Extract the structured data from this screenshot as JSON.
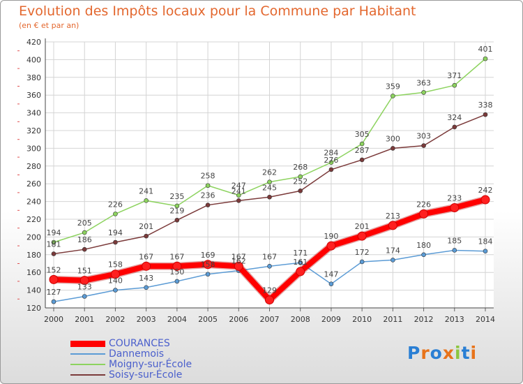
{
  "header": {
    "title": "Evolution des Impôts locaux pour la Commune par Habitant",
    "subtitle": "(en € et par an)"
  },
  "logo": {
    "text": "Proxiti",
    "letters": [
      "P",
      "r",
      "o",
      "x",
      "i",
      "t",
      "i"
    ],
    "colors": [
      "#2a7fd4",
      "#e8731a",
      "#2a7fd4",
      "#e8731a",
      "#8cc63f",
      "#2a7fd4",
      "#e8731a"
    ]
  },
  "chart_data": {
    "type": "line",
    "title": "Evolution des Impôts locaux pour la Commune par Habitant",
    "subtitle": "(en € et par an)",
    "xlabel": "",
    "ylabel": "",
    "x": [
      "2000",
      "2001",
      "2002",
      "2003",
      "2004",
      "2005",
      "2006",
      "2007",
      "2008",
      "2009",
      "2010",
      "2011",
      "2012",
      "2013",
      "2014"
    ],
    "ylim": [
      120,
      420
    ],
    "yticks": [
      "120",
      "140",
      "160",
      "180",
      "200",
      "220",
      "240",
      "260",
      "280",
      "300",
      "320",
      "340",
      "360",
      "380",
      "400",
      "420"
    ],
    "grid": true,
    "legend_position": "bottom-left",
    "series": [
      {
        "name": "COURANCES",
        "color": "#ff0000",
        "bold": true,
        "values": [
          152,
          151,
          158,
          167,
          167,
          169,
          167,
          129,
          161,
          190,
          201,
          213,
          226,
          233,
          242
        ],
        "labels": [
          "152",
          "151",
          "158",
          "167",
          "167",
          "169",
          "167",
          "129",
          "161",
          "190",
          "201",
          "213",
          "226",
          "233",
          "242"
        ]
      },
      {
        "name": "Dannemois",
        "color": "#5b9bd5",
        "bold": false,
        "values": [
          127,
          133,
          140,
          143,
          150,
          158,
          162,
          167,
          171,
          147,
          172,
          174,
          180,
          185,
          184
        ],
        "labels": [
          "127",
          "133",
          "140",
          "143",
          "150",
          "158",
          "162",
          "167",
          "171",
          "147",
          "172",
          "174",
          "180",
          "185",
          "184"
        ]
      },
      {
        "name": "Moigny-sur-École",
        "color": "#8dd35f",
        "bold": false,
        "values": [
          194,
          205,
          226,
          241,
          235,
          258,
          247,
          262,
          268,
          284,
          305,
          359,
          363,
          371,
          401
        ],
        "labels": [
          "194",
          "205",
          "226",
          "241",
          "235",
          "258",
          "247",
          "262",
          "268",
          "284",
          "305",
          "359",
          "363",
          "371",
          "401"
        ]
      },
      {
        "name": "Soisy-sur-École",
        "color": "#7b3a3a",
        "bold": false,
        "values": [
          181,
          186,
          194,
          201,
          219,
          236,
          241,
          245,
          252,
          276,
          287,
          300,
          303,
          324,
          338
        ],
        "labels": [
          "181",
          "186",
          "194",
          "201",
          "219",
          "236",
          "241",
          "245",
          "252",
          "276",
          "287",
          "300",
          "303",
          "324",
          "338"
        ]
      }
    ]
  }
}
